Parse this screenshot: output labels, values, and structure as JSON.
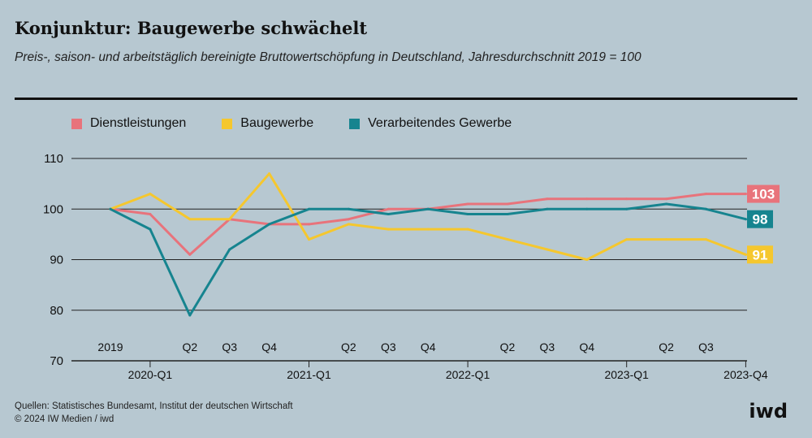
{
  "title": "Konjunktur: Baugewerbe schwächelt",
  "subtitle": "Preis-, saison- und arbeitstäglich bereinigte Bruttowertschöpfung in Deutschland, Jahresdurchschnitt 2019 = 100",
  "footer": {
    "sources": "Quellen: Statistisches Bundesamt, Institut der deutschen Wirtschaft",
    "copyright": "© 2024 IW Medien / iwd"
  },
  "logo_text": "iwd",
  "chart_data": {
    "type": "line",
    "title": "Konjunktur: Baugewerbe schwächelt",
    "xlabel": "",
    "ylabel": "",
    "ylim": [
      70,
      110
    ],
    "yticks": [
      70,
      80,
      90,
      100,
      110
    ],
    "grid": true,
    "legend_position": "top-left",
    "x_upper_labels": [
      "2019",
      "",
      "Q2",
      "Q3",
      "Q4",
      "",
      "Q2",
      "Q3",
      "Q4",
      "",
      "Q2",
      "Q3",
      "Q4",
      "",
      "Q2",
      "Q3",
      ""
    ],
    "x_lower_labels": [
      "",
      "2020-Q1",
      "",
      "",
      "",
      "2021-Q1",
      "",
      "",
      "",
      "2022-Q1",
      "",
      "",
      "",
      "2023-Q1",
      "",
      "",
      "2023-Q4"
    ],
    "series": [
      {
        "name": "Dienstleistungen",
        "color": "#e8737b",
        "end_label": "103",
        "values": [
          100,
          99,
          91,
          98,
          97,
          97,
          98,
          100,
          100,
          101,
          101,
          102,
          102,
          102,
          102,
          103,
          103
        ]
      },
      {
        "name": "Baugewerbe",
        "color": "#f5c72e",
        "end_label": "91",
        "values": [
          100,
          103,
          98,
          98,
          107,
          94,
          97,
          96,
          96,
          96,
          94,
          92,
          90,
          94,
          94,
          94,
          91
        ]
      },
      {
        "name": "Verarbeitendes Gewerbe",
        "color": "#16848f",
        "end_label": "98",
        "values": [
          100,
          96,
          79,
          92,
          97,
          100,
          100,
          99,
          100,
          99,
          99,
          100,
          100,
          100,
          101,
          100,
          98
        ]
      }
    ]
  }
}
